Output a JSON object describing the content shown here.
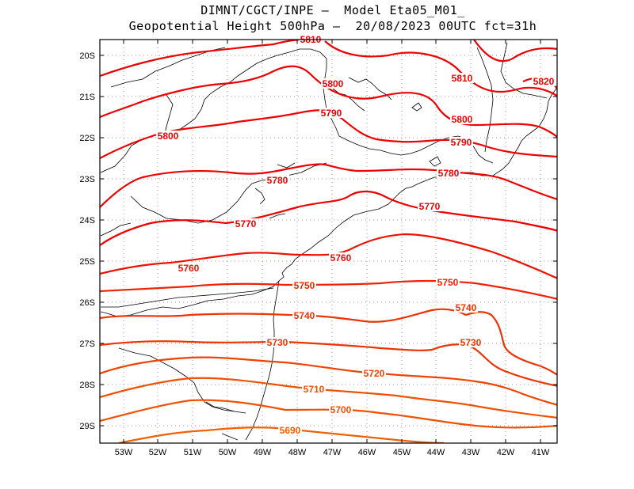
{
  "title": {
    "line1": "DIMNT/CGCT/INPE –  Model Eta05_M01_",
    "line2": "Geopotential Height 500hPa –  20/08/2023 00UTC fct=31h"
  },
  "axes": {
    "lat_ticks": [
      "20S",
      "21S",
      "22S",
      "23S",
      "24S",
      "25S",
      "26S",
      "27S",
      "28S",
      "29S"
    ],
    "lon_ticks": [
      "53W",
      "52W",
      "51W",
      "50W",
      "49W",
      "48W",
      "47W",
      "46W",
      "45W",
      "44W",
      "43W",
      "42W",
      "41W"
    ]
  },
  "contour_labels": [
    {
      "text": "5820",
      "color": "#ee0000"
    },
    {
      "text": "5810",
      "color": "#ee0000"
    },
    {
      "text": "5810",
      "color": "#ee0000"
    },
    {
      "text": "5800",
      "color": "#ee0000"
    },
    {
      "text": "5800",
      "color": "#ee0000"
    },
    {
      "text": "5800",
      "color": "#ee0000"
    },
    {
      "text": "5790",
      "color": "#ee0000"
    },
    {
      "text": "5790",
      "color": "#ee0000"
    },
    {
      "text": "5780",
      "color": "#ee0000"
    },
    {
      "text": "5780",
      "color": "#ee0000"
    },
    {
      "text": "5770",
      "color": "#ee0000"
    },
    {
      "text": "5770",
      "color": "#ee0000"
    },
    {
      "text": "5760",
      "color": "#ee1100"
    },
    {
      "text": "5760",
      "color": "#ee1100"
    },
    {
      "text": "5750",
      "color": "#ee2200"
    },
    {
      "text": "5750",
      "color": "#ee2200"
    },
    {
      "text": "5740",
      "color": "#ee3300"
    },
    {
      "text": "5740",
      "color": "#ee3300"
    },
    {
      "text": "5730",
      "color": "#ee3300"
    },
    {
      "text": "5730",
      "color": "#ee3300"
    },
    {
      "text": "5720",
      "color": "#ee4400"
    },
    {
      "text": "5710",
      "color": "#f05000"
    },
    {
      "text": "5700",
      "color": "#f05000"
    },
    {
      "text": "5690",
      "color": "#f06000"
    }
  ]
}
